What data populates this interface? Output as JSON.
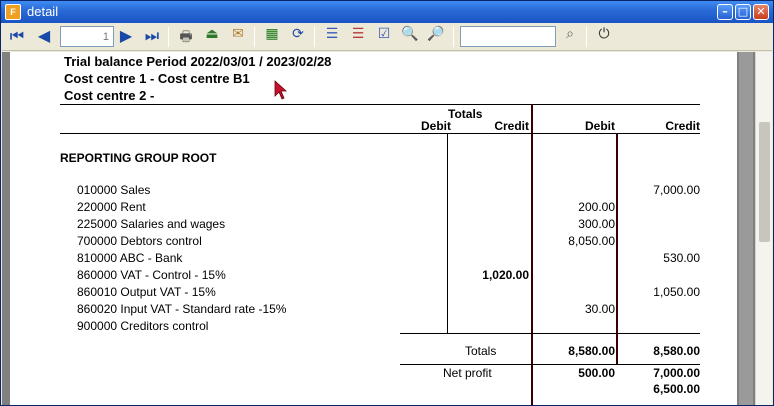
{
  "window": {
    "title": "detail",
    "app_icon_text": "F"
  },
  "toolbar": {
    "page_value": "1",
    "search_value": "",
    "icons": [
      "first-page-icon",
      "previous-page-icon",
      "next-page-icon",
      "last-page-icon",
      "print-icon",
      "export-icon",
      "email-icon",
      "excel-icon",
      "refresh-icon",
      "layout-1-icon",
      "layout-2-icon",
      "layout-check-icon",
      "zoom-out-icon",
      "zoom-in-icon",
      "search-icon",
      "power-icon"
    ]
  },
  "report": {
    "title_line1": "Trial balance Period  2022/03/01 / 2023/02/28",
    "title_line2": "Cost centre 1 - Cost centre B1",
    "title_line3": "Cost centre 2 -",
    "col_totals": "Totals",
    "col_debit1": "Debit",
    "col_credit1": "Credit",
    "col_debit2": "Debit",
    "col_credit2": "Credit",
    "group": "REPORTING GROUP ROOT",
    "rows": [
      {
        "account": "010000 Sales",
        "t_debit": "",
        "t_credit": "",
        "debit": "",
        "credit": "7,000.00"
      },
      {
        "account": "220000 Rent",
        "t_debit": "",
        "t_credit": "",
        "debit": "200.00",
        "credit": ""
      },
      {
        "account": "225000 Salaries and wages",
        "t_debit": "",
        "t_credit": "",
        "debit": "300.00",
        "credit": ""
      },
      {
        "account": "700000 Debtors control",
        "t_debit": "",
        "t_credit": "",
        "debit": "8,050.00",
        "credit": ""
      },
      {
        "account": "810000 ABC - Bank",
        "t_debit": "",
        "t_credit": "",
        "debit": "",
        "credit": "530.00"
      },
      {
        "account": "860000 VAT - Control - 15%",
        "t_debit": "",
        "t_credit": "1,020.00",
        "debit": "",
        "credit": ""
      },
      {
        "account": "860010 Output VAT - 15%",
        "t_debit": "",
        "t_credit": "",
        "debit": "",
        "credit": "1,050.00"
      },
      {
        "account": "860020 Input VAT - Standard rate -15%",
        "t_debit": "",
        "t_credit": "",
        "debit": "30.00",
        "credit": ""
      },
      {
        "account": "900000 Creditors control",
        "t_debit": "",
        "t_credit": "",
        "debit": "",
        "credit": ""
      }
    ],
    "totals_label": "Totals",
    "totals_debit": "8,580.00",
    "totals_credit": "8,580.00",
    "net_profit_label": "Net profit",
    "net_profit_debit": "500.00",
    "net_profit_credit": "7,000.00",
    "net_profit_extra": "6,500.00"
  }
}
